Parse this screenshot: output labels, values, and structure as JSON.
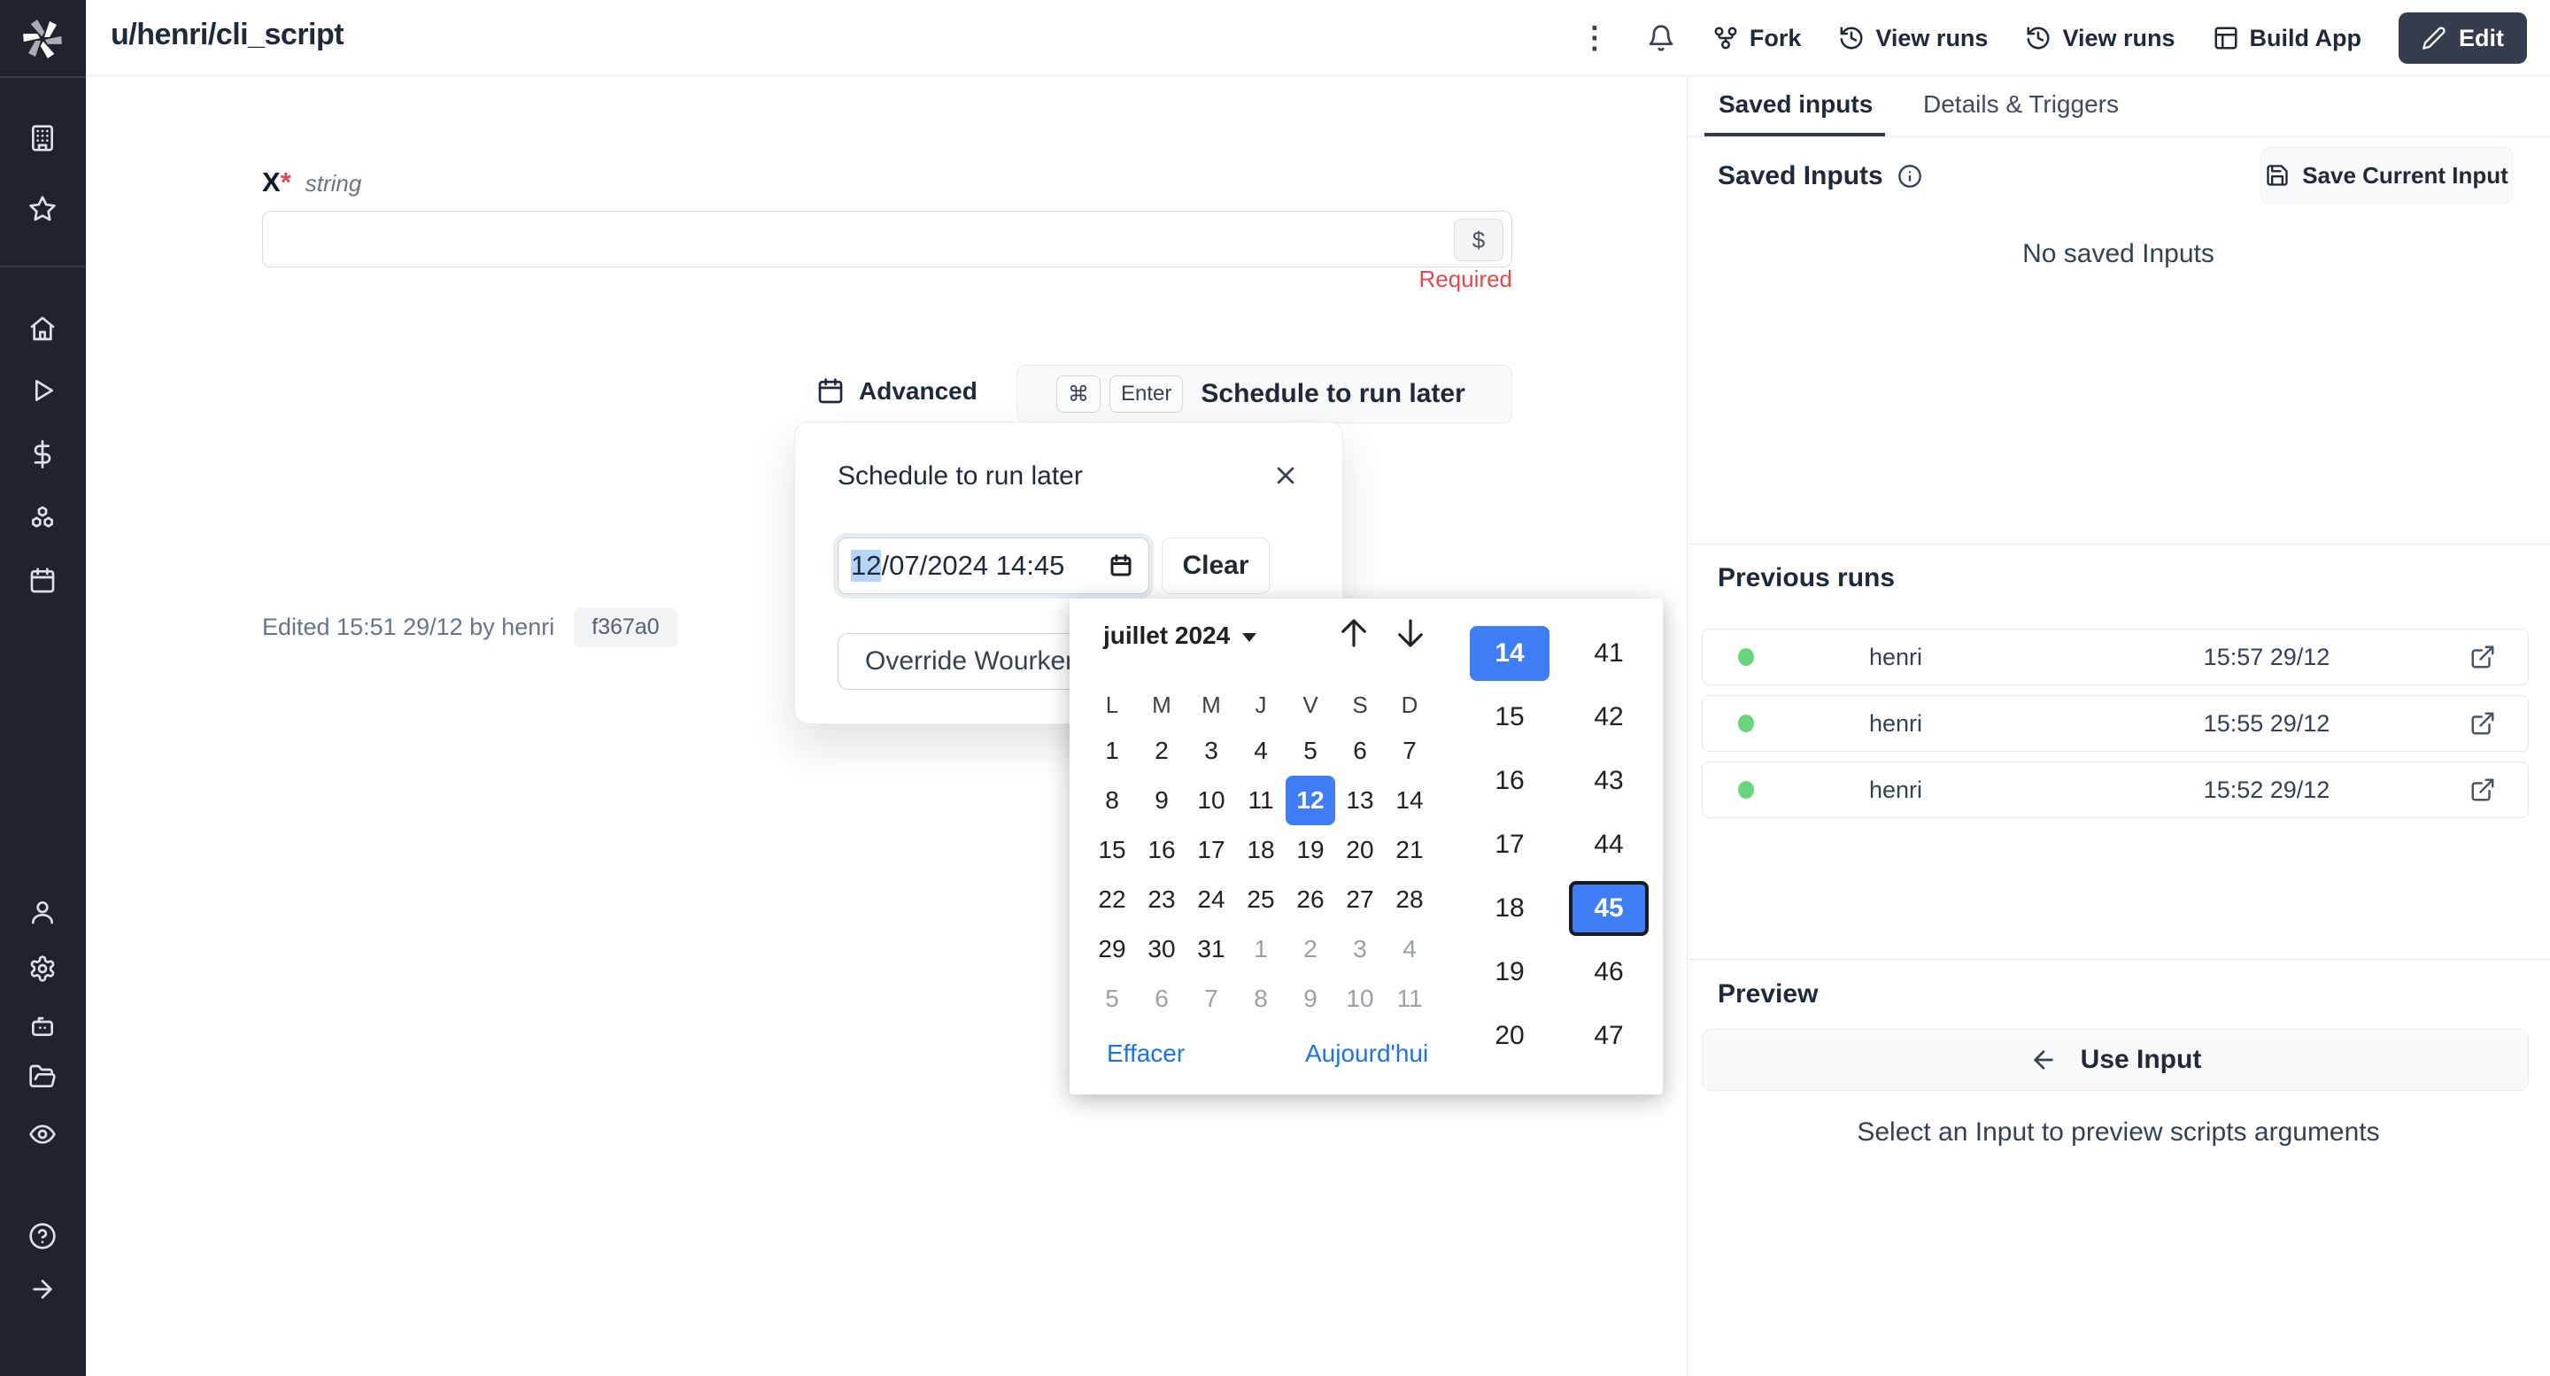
{
  "topbar": {
    "title": "u/henri/cli_script",
    "fork": "Fork",
    "view_runs_1": "View runs",
    "view_runs_2": "View runs",
    "build_app": "Build App",
    "edit": "Edit"
  },
  "form": {
    "field_name": "X",
    "required_star": "*",
    "field_type": "string",
    "input_value": "",
    "dollar_suffix": "$",
    "required_msg": "Required",
    "edited_line": "Edited 15:51 29/12 by henri",
    "hash_badge": "f367a0"
  },
  "schedule": {
    "advanced_label": "Advanced",
    "kbd_cmd": "⌘",
    "kbd_enter": "Enter",
    "button_label": "Schedule to run later",
    "popup_title": "Schedule to run later",
    "datetime_selected_part": "12",
    "datetime_rest": "/07/2024 14:45",
    "clear_label": "Clear",
    "override_label": "Override Wourker Group"
  },
  "calendar": {
    "month_label": "juillet 2024",
    "weekdays": [
      "L",
      "M",
      "M",
      "J",
      "V",
      "S",
      "D"
    ],
    "days": [
      {
        "n": "1"
      },
      {
        "n": "2"
      },
      {
        "n": "3"
      },
      {
        "n": "4"
      },
      {
        "n": "5"
      },
      {
        "n": "6"
      },
      {
        "n": "7"
      },
      {
        "n": "8"
      },
      {
        "n": "9"
      },
      {
        "n": "10"
      },
      {
        "n": "11"
      },
      {
        "n": "12",
        "selected": true
      },
      {
        "n": "13"
      },
      {
        "n": "14"
      },
      {
        "n": "15"
      },
      {
        "n": "16"
      },
      {
        "n": "17"
      },
      {
        "n": "18"
      },
      {
        "n": "19"
      },
      {
        "n": "20"
      },
      {
        "n": "21"
      },
      {
        "n": "22"
      },
      {
        "n": "23"
      },
      {
        "n": "24"
      },
      {
        "n": "25"
      },
      {
        "n": "26"
      },
      {
        "n": "27"
      },
      {
        "n": "28"
      },
      {
        "n": "29"
      },
      {
        "n": "30"
      },
      {
        "n": "31"
      },
      {
        "n": "1",
        "muted": true
      },
      {
        "n": "2",
        "muted": true
      },
      {
        "n": "3",
        "muted": true
      },
      {
        "n": "4",
        "muted": true
      },
      {
        "n": "5",
        "muted": true
      },
      {
        "n": "6",
        "muted": true
      },
      {
        "n": "7",
        "muted": true
      },
      {
        "n": "8",
        "muted": true
      },
      {
        "n": "9",
        "muted": true
      },
      {
        "n": "10",
        "muted": true
      },
      {
        "n": "11",
        "muted": true
      }
    ],
    "hours": [
      {
        "n": "14",
        "selected": true
      },
      {
        "n": "15"
      },
      {
        "n": "16"
      },
      {
        "n": "17"
      },
      {
        "n": "18"
      },
      {
        "n": "19"
      },
      {
        "n": "20"
      }
    ],
    "minutes": [
      {
        "n": "41"
      },
      {
        "n": "42"
      },
      {
        "n": "43"
      },
      {
        "n": "44"
      },
      {
        "n": "45",
        "selected": true,
        "focused": true
      },
      {
        "n": "46"
      },
      {
        "n": "47"
      }
    ],
    "clear_link": "Effacer",
    "today_link": "Aujourd'hui"
  },
  "right_panel": {
    "tabs": {
      "saved_inputs": "Saved inputs",
      "details_triggers": "Details & Triggers"
    },
    "saved_inputs_title": "Saved Inputs",
    "save_current_input": "Save Current Input",
    "empty_message": "No saved Inputs",
    "previous_runs_title": "Previous runs",
    "runs": [
      {
        "user": "henri",
        "time": "15:57 29/12"
      },
      {
        "user": "henri",
        "time": "15:55 29/12"
      },
      {
        "user": "henri",
        "time": "15:52 29/12"
      }
    ],
    "preview_title": "Preview",
    "use_input_label": "Use Input",
    "select_hint": "Select an Input to preview scripts arguments"
  },
  "colors": {
    "accent_blue": "#3e7df6",
    "link_blue": "#1a73e8",
    "success_green": "#68d57e",
    "error_red": "#e5484d",
    "sidebar_bg": "#1e232d",
    "edit_button_bg": "#343c4d"
  }
}
